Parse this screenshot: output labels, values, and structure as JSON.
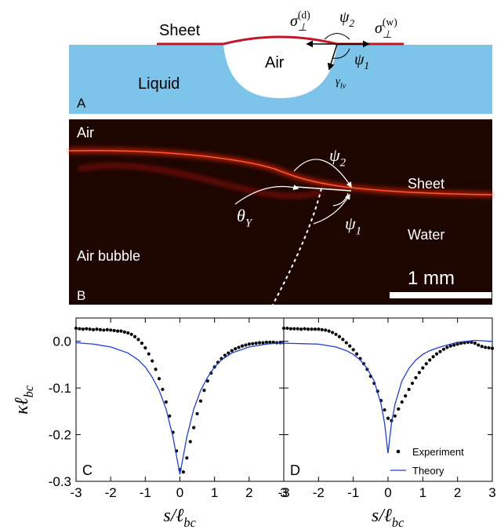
{
  "panel_a": {
    "letter": "A",
    "sheet": "Sheet",
    "air": "Air",
    "liquid": "Liquid",
    "sigma_d": {
      "base": "σ",
      "sub": "⊥",
      "sup": "(d)"
    },
    "sigma_w": {
      "base": "σ",
      "sub": "⊥",
      "sup": "(w)"
    },
    "psi_2": {
      "base": "ψ",
      "sub": "2"
    },
    "psi_1": {
      "base": "ψ",
      "sub": "1"
    },
    "gamma": {
      "base": "γ",
      "sub": "lv"
    }
  },
  "panel_b": {
    "letter": "B",
    "air": "Air",
    "sheet": "Sheet",
    "water": "Water",
    "air_bubble": "Air bubble",
    "scale_bar": "1 mm",
    "psi_2": {
      "base": "ψ",
      "sub": "2"
    },
    "psi_1": {
      "base": "ψ",
      "sub": "1"
    },
    "theta": {
      "base": "θ",
      "sub": "Y"
    }
  },
  "chart_data": [
    {
      "type": "line",
      "label": "C",
      "x_label": {
        "base": "s/ℓ",
        "sub": "bc"
      },
      "y_label": {
        "base": "κℓ",
        "sub": "bc"
      },
      "xlim": [
        -3,
        3
      ],
      "ylim": [
        -0.3,
        0.05
      ],
      "xticks": [
        -3,
        -2,
        -1,
        0,
        1,
        2,
        3
      ],
      "yticks": [
        {
          "value": 0,
          "label": "0.0"
        },
        -0.1,
        -0.2,
        -0.3
      ],
      "ytick_labels": true,
      "series": [
        {
          "name": "Experiment",
          "type": "scatter",
          "color": "#000000",
          "x": [
            -3.0,
            -2.9,
            -2.8,
            -2.7,
            -2.6,
            -2.5,
            -2.4,
            -2.3,
            -2.2,
            -2.1,
            -2.0,
            -1.9,
            -1.8,
            -1.7,
            -1.6,
            -1.5,
            -1.4,
            -1.3,
            -1.2,
            -1.1,
            -1.0,
            -0.9,
            -0.8,
            -0.7,
            -0.6,
            -0.5,
            -0.4,
            -0.3,
            -0.2,
            -0.1,
            0.0,
            0.1,
            0.2,
            0.3,
            0.4,
            0.5,
            0.6,
            0.7,
            0.8,
            0.9,
            1.0,
            1.1,
            1.2,
            1.3,
            1.4,
            1.5,
            1.6,
            1.7,
            1.8,
            1.9,
            2.0,
            2.1,
            2.2,
            2.3,
            2.4,
            2.5,
            2.6,
            2.7,
            2.8,
            2.9,
            3.0
          ],
          "values": [
            0.028,
            0.027,
            0.026,
            0.027,
            0.026,
            0.025,
            0.026,
            0.025,
            0.024,
            0.025,
            0.024,
            0.023,
            0.022,
            0.022,
            0.02,
            0.018,
            0.015,
            0.01,
            0.004,
            -0.004,
            -0.014,
            -0.027,
            -0.042,
            -0.06,
            -0.08,
            -0.103,
            -0.13,
            -0.16,
            -0.195,
            -0.235,
            -0.275,
            -0.28,
            -0.25,
            -0.215,
            -0.185,
            -0.155,
            -0.128,
            -0.105,
            -0.085,
            -0.068,
            -0.055,
            -0.045,
            -0.037,
            -0.03,
            -0.025,
            -0.02,
            -0.016,
            -0.013,
            -0.01,
            -0.008,
            -0.006,
            -0.005,
            -0.004,
            -0.003,
            -0.003,
            -0.002,
            -0.002,
            -0.002,
            -0.003,
            -0.003,
            -0.003
          ]
        },
        {
          "name": "Theory",
          "type": "line",
          "color": "#1f3fd6",
          "x": [
            -3,
            -2.5,
            -2,
            -1.5,
            -1.2,
            -1,
            -0.8,
            -0.6,
            -0.4,
            -0.2,
            -0.1,
            0,
            0.1,
            0.2,
            0.4,
            0.6,
            0.8,
            1,
            1.2,
            1.5,
            2,
            2.5,
            3
          ],
          "values": [
            -0.003,
            -0.006,
            -0.012,
            -0.025,
            -0.04,
            -0.055,
            -0.077,
            -0.105,
            -0.145,
            -0.205,
            -0.245,
            -0.285,
            -0.245,
            -0.205,
            -0.145,
            -0.105,
            -0.077,
            -0.055,
            -0.04,
            -0.025,
            -0.012,
            -0.006,
            -0.003
          ]
        }
      ]
    },
    {
      "type": "line",
      "label": "D",
      "legend": "lower right",
      "x_label": {
        "base": "s/ℓ",
        "sub": "bc"
      },
      "xlim": [
        -3,
        3
      ],
      "ylim": [
        -0.3,
        0.05
      ],
      "xticks": [
        -3,
        -2,
        -1,
        0,
        1,
        2,
        3
      ],
      "yticks": [
        0,
        -0.1,
        -0.2,
        -0.3
      ],
      "ytick_labels": false,
      "series": [
        {
          "name": "Experiment",
          "type": "scatter",
          "color": "#000000",
          "x": [
            -3.0,
            -2.9,
            -2.8,
            -2.7,
            -2.6,
            -2.5,
            -2.4,
            -2.3,
            -2.2,
            -2.1,
            -2.0,
            -1.9,
            -1.8,
            -1.7,
            -1.6,
            -1.5,
            -1.4,
            -1.3,
            -1.2,
            -1.1,
            -1.0,
            -0.9,
            -0.8,
            -0.7,
            -0.6,
            -0.5,
            -0.4,
            -0.3,
            -0.2,
            -0.1,
            0.0,
            0.1,
            0.2,
            0.3,
            0.4,
            0.5,
            0.6,
            0.7,
            0.8,
            0.9,
            1.0,
            1.1,
            1.2,
            1.3,
            1.4,
            1.5,
            1.6,
            1.7,
            1.8,
            1.9,
            2.0,
            2.1,
            2.2,
            2.3,
            2.4,
            2.5,
            2.6,
            2.7,
            2.8,
            2.9,
            3.0
          ],
          "values": [
            0.028,
            0.028,
            0.027,
            0.027,
            0.027,
            0.026,
            0.027,
            0.026,
            0.026,
            0.026,
            0.026,
            0.025,
            0.024,
            0.022,
            0.019,
            0.015,
            0.01,
            0.004,
            -0.003,
            -0.01,
            -0.018,
            -0.027,
            -0.037,
            -0.048,
            -0.06,
            -0.075,
            -0.09,
            -0.107,
            -0.127,
            -0.147,
            -0.165,
            -0.17,
            -0.16,
            -0.145,
            -0.13,
            -0.117,
            -0.103,
            -0.09,
            -0.078,
            -0.067,
            -0.057,
            -0.048,
            -0.04,
            -0.033,
            -0.027,
            -0.022,
            -0.017,
            -0.013,
            -0.01,
            -0.008,
            -0.006,
            -0.004,
            -0.003,
            -0.002,
            -0.002,
            -0.004,
            -0.008,
            -0.011,
            -0.013,
            -0.014,
            -0.015
          ]
        },
        {
          "name": "Theory",
          "type": "line",
          "color": "#1f3fd6",
          "x": [
            -3,
            -2.5,
            -2,
            -1.5,
            -1.2,
            -1,
            -0.8,
            -0.6,
            -0.4,
            -0.2,
            -0.1,
            0,
            0.1,
            0.2,
            0.4,
            0.6,
            0.8,
            1,
            1.2,
            1.5,
            2,
            2.5,
            3
          ],
          "values": [
            -0.004,
            -0.005,
            -0.006,
            -0.012,
            -0.02,
            -0.028,
            -0.04,
            -0.058,
            -0.085,
            -0.135,
            -0.175,
            -0.24,
            -0.175,
            -0.135,
            -0.085,
            -0.058,
            -0.04,
            -0.028,
            -0.02,
            -0.012,
            -0.002,
            0.002,
            0.0
          ]
        }
      ]
    }
  ]
}
